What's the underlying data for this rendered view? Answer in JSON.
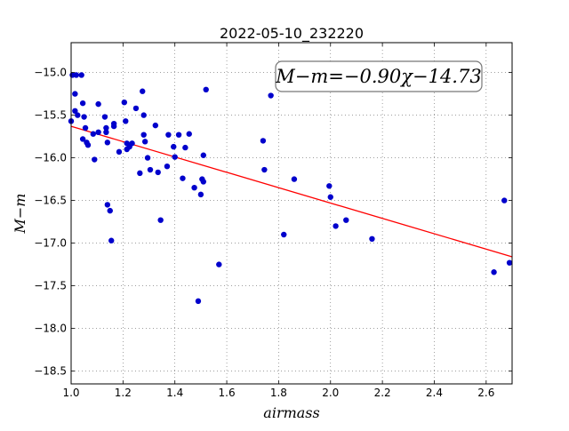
{
  "chart_data": {
    "type": "scatter",
    "title": "2022-05-10_232220",
    "xlabel": "airmass",
    "ylabel": "M−m",
    "xlim": [
      1.0,
      2.7
    ],
    "ylim": [
      -18.65,
      -14.65
    ],
    "y_inverted": true,
    "grid": true,
    "xticks": [
      1.0,
      1.2,
      1.4,
      1.6,
      1.8,
      2.0,
      2.2,
      2.4,
      2.6
    ],
    "xtick_labels": [
      "1.0",
      "1.2",
      "1.4",
      "1.6",
      "1.8",
      "2.0",
      "2.2",
      "2.4",
      "2.6"
    ],
    "yticks": [
      -15.0,
      -15.5,
      -16.0,
      -16.5,
      -17.0,
      -17.5,
      -18.0,
      -18.5
    ],
    "ytick_labels": [
      "−15.0",
      "−15.5",
      "−16.0",
      "−16.5",
      "−17.0",
      "−17.5",
      "−18.0",
      "−18.5"
    ],
    "annotation": "M−m=−0.90χ−14.73",
    "annotation_position": "top-right",
    "fit_line": {
      "slope": -0.9,
      "intercept": -14.73,
      "color": "#ff0000"
    },
    "point_color": "#0000cc",
    "points": [
      [
        1.005,
        -15.03
      ],
      [
        1.02,
        -15.03
      ],
      [
        1.04,
        -15.03
      ],
      [
        1.0,
        -15.57
      ],
      [
        1.015,
        -15.25
      ],
      [
        1.015,
        -15.45
      ],
      [
        1.025,
        -15.5
      ],
      [
        1.045,
        -15.36
      ],
      [
        1.05,
        -15.52
      ],
      [
        1.055,
        -15.65
      ],
      [
        1.045,
        -15.78
      ],
      [
        1.06,
        -15.82
      ],
      [
        1.065,
        -15.85
      ],
      [
        1.085,
        -15.72
      ],
      [
        1.09,
        -16.02
      ],
      [
        1.105,
        -15.37
      ],
      [
        1.105,
        -15.7
      ],
      [
        1.13,
        -15.52
      ],
      [
        1.135,
        -15.65
      ],
      [
        1.135,
        -15.7
      ],
      [
        1.14,
        -15.82
      ],
      [
        1.14,
        -16.55
      ],
      [
        1.15,
        -16.62
      ],
      [
        1.155,
        -16.97
      ],
      [
        1.165,
        -15.6
      ],
      [
        1.165,
        -15.63
      ],
      [
        1.185,
        -15.93
      ],
      [
        1.205,
        -15.35
      ],
      [
        1.21,
        -15.57
      ],
      [
        1.215,
        -15.83
      ],
      [
        1.215,
        -15.9
      ],
      [
        1.225,
        -15.87
      ],
      [
        1.235,
        -15.83
      ],
      [
        1.25,
        -15.42
      ],
      [
        1.265,
        -16.18
      ],
      [
        1.275,
        -15.22
      ],
      [
        1.28,
        -15.5
      ],
      [
        1.28,
        -15.73
      ],
      [
        1.285,
        -15.81
      ],
      [
        1.295,
        -16.0
      ],
      [
        1.305,
        -16.14
      ],
      [
        1.325,
        -15.62
      ],
      [
        1.335,
        -16.17
      ],
      [
        1.345,
        -16.73
      ],
      [
        1.37,
        -16.1
      ],
      [
        1.375,
        -15.73
      ],
      [
        1.395,
        -15.87
      ],
      [
        1.4,
        -15.99
      ],
      [
        1.415,
        -15.73
      ],
      [
        1.43,
        -16.24
      ],
      [
        1.44,
        -15.88
      ],
      [
        1.455,
        -15.72
      ],
      [
        1.475,
        -16.35
      ],
      [
        1.49,
        -17.68
      ],
      [
        1.5,
        -16.43
      ],
      [
        1.505,
        -16.25
      ],
      [
        1.51,
        -15.97
      ],
      [
        1.51,
        -16.28
      ],
      [
        1.52,
        -15.2
      ],
      [
        1.57,
        -17.25
      ],
      [
        1.74,
        -15.8
      ],
      [
        1.745,
        -16.14
      ],
      [
        1.77,
        -15.27
      ],
      [
        1.82,
        -16.9
      ],
      [
        1.86,
        -16.25
      ],
      [
        1.995,
        -16.33
      ],
      [
        2.0,
        -16.46
      ],
      [
        2.02,
        -16.8
      ],
      [
        2.06,
        -16.73
      ],
      [
        2.16,
        -16.95
      ],
      [
        2.63,
        -17.34
      ],
      [
        2.67,
        -16.5
      ],
      [
        2.69,
        -17.23
      ]
    ]
  }
}
